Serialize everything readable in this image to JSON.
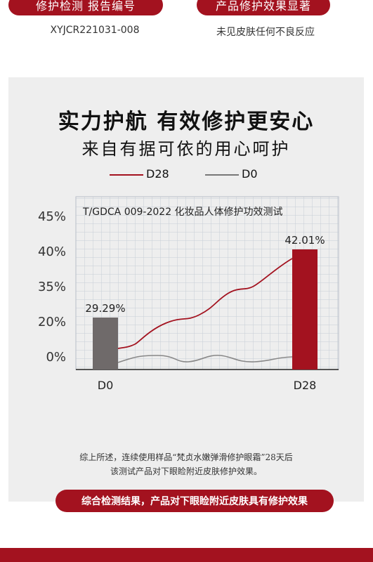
{
  "header": {
    "left_pill": "修护检测 报告编号",
    "right_pill": "产品修护效果显著",
    "report_number": "XYJCR221031-008",
    "result_text": "未见皮肤任何不良反应"
  },
  "panel": {
    "headline": "实力护航 有效修护更安心",
    "subheadline": "来自有据可依的用心呵护",
    "chart_caption": "T/GDCA 009-2022 化妆品人体修护功效测试",
    "cta": "综合检测结果，产品对下眼睑附近皮肤具有修护效果",
    "note_line1": "综上所述，连续使用样品“梵贞水嫩弹滑修护眼霜”28天后",
    "note_line2": "该测试产品对下眼睑附近皮肤修护效果。"
  },
  "chart_data": {
    "type": "bar",
    "categories": [
      "D0",
      "D28"
    ],
    "values": [
      29.29,
      42.01
    ],
    "value_labels": [
      "29.29%",
      "42.01%"
    ],
    "yticks": [
      "0%",
      "20%",
      "35%",
      "40%",
      "45%"
    ],
    "series": [
      {
        "name": "D28",
        "color": "#a3121f"
      },
      {
        "name": "D0",
        "color": "#777777"
      }
    ],
    "bar_colors": [
      "#6f6a6a",
      "#a3121f"
    ],
    "grid": true
  }
}
